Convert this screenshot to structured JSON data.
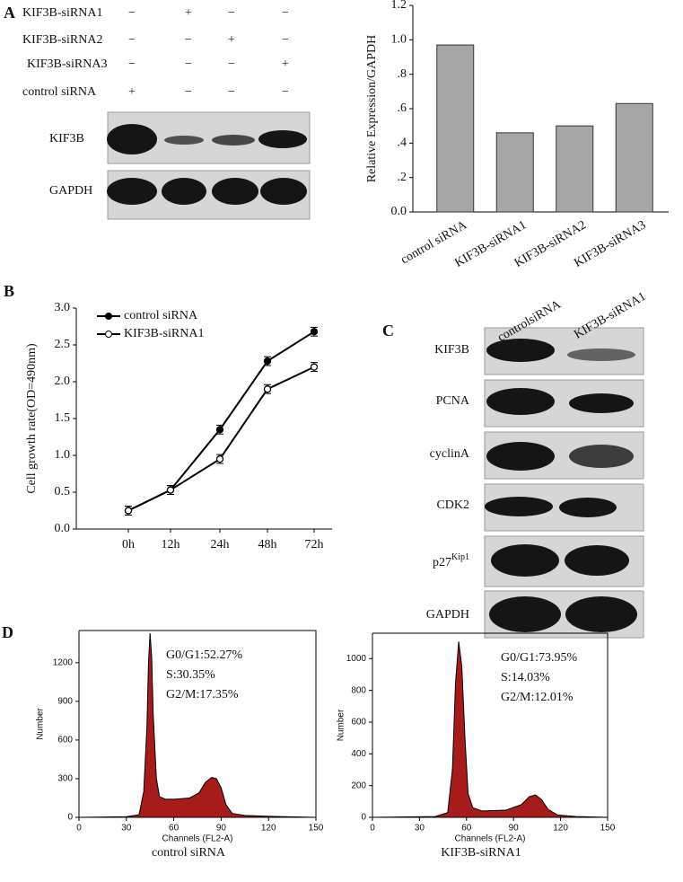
{
  "panel_labels": [
    "A",
    "B",
    "C",
    "D"
  ],
  "blot_a": {
    "conditions": [
      {
        "label": "KIF3B-siRNA1",
        "signs": [
          "−",
          "+",
          "−",
          "−"
        ]
      },
      {
        "label": "KIF3B-siRNA2",
        "signs": [
          "−",
          "−",
          "+",
          "−"
        ]
      },
      {
        "label": "KIF3B-siRNA3",
        "signs": [
          "−",
          "−",
          "−",
          "+"
        ]
      },
      {
        "label": "control siRNA",
        "signs": [
          "+",
          "−",
          "−",
          "−"
        ]
      }
    ],
    "bands": [
      "KIF3B",
      "GAPDH"
    ]
  },
  "blot_c": {
    "lanes": [
      "controlsiRNA",
      "KIF3B-siRNA1"
    ],
    "bands": [
      {
        "name": "KIF3B"
      },
      {
        "name": "PCNA"
      },
      {
        "name": "cyclinA"
      },
      {
        "name": "CDK2"
      },
      {
        "name": "p27",
        "superscript": "Kip1"
      },
      {
        "name": "GAPDH"
      }
    ]
  },
  "chart_data": [
    {
      "type": "bar",
      "y_label": "Relative Expression/GAPDH",
      "categories": [
        "control siRNA",
        "KIF3B-siRNA1",
        "KIF3B-siRNA2",
        "KIF3B-siRNA3"
      ],
      "values": [
        0.97,
        0.46,
        0.5,
        0.63
      ],
      "color": "#a6a6a6",
      "ylim": [
        0,
        1.2
      ],
      "yticks": [
        {
          "value": 0,
          "label": "0.0"
        },
        {
          "value": 0.2,
          "label": ".2"
        },
        {
          "value": 0.4,
          "label": ".4"
        },
        {
          "value": 0.6,
          "label": ".6"
        },
        {
          "value": 0.8,
          "label": ".8"
        },
        {
          "value": 1,
          "label": "1.0"
        },
        1.2
      ]
    },
    {
      "type": "line",
      "y_label": "Cell growth rate(OD=490nm)",
      "categories": [
        "0h",
        "12h",
        "24h",
        "48h",
        "72h"
      ],
      "ylim": [
        0,
        3
      ],
      "yticks": [
        {
          "value": 0,
          "label": "0.0"
        },
        0.5,
        {
          "value": 1,
          "label": "1.0"
        },
        1.5,
        {
          "value": 2,
          "label": "2.0"
        },
        2.5,
        {
          "value": 3,
          "label": "3.0"
        }
      ],
      "legend": "upper left",
      "series": [
        {
          "name": "control siRNA",
          "color": "#000000",
          "marker": "filled",
          "values": [
            0.25,
            0.53,
            1.35,
            2.28,
            2.68
          ],
          "errors": [
            0.06,
            0.06,
            0.06,
            0.06,
            0.06
          ]
        },
        {
          "name": "KIF3B-siRNA1",
          "color": "#000000",
          "marker": "open",
          "values": [
            0.25,
            0.53,
            0.95,
            1.9,
            2.2
          ],
          "errors": [
            0.06,
            0.06,
            0.06,
            0.06,
            0.06
          ]
        }
      ]
    },
    {
      "type": "area",
      "x_label": "Channels (FL2-A)",
      "y_label": "Number",
      "caption": "control siRNA",
      "annotations": [
        "G0/G1:52.27%",
        "S:30.35%",
        "G2/M:17.35%"
      ],
      "x": [
        0,
        30,
        38,
        41,
        43,
        44,
        45,
        46,
        47,
        49,
        51,
        55,
        60,
        70,
        76,
        80,
        84,
        87,
        90,
        93,
        97,
        105,
        120,
        150
      ],
      "values": [
        0,
        5,
        20,
        200,
        700,
        1200,
        1430,
        1250,
        800,
        300,
        160,
        140,
        140,
        150,
        190,
        270,
        310,
        300,
        230,
        100,
        30,
        15,
        8,
        0
      ],
      "color": "#a81b1b",
      "xlim": [
        0,
        150
      ],
      "xticks": [
        0,
        30,
        60,
        90,
        120,
        150
      ],
      "ylim": [
        0,
        1450
      ],
      "yticks": [
        0,
        300,
        600,
        900,
        1200
      ]
    },
    {
      "type": "area",
      "x_label": "Channels (FL2-A)",
      "y_label": "Number",
      "caption": "KIF3B-siRNA1",
      "annotations": [
        "G0/G1:73.95%",
        "S:14.03%",
        "G2/M:12.01%"
      ],
      "x": [
        0,
        40,
        48,
        51,
        53,
        55,
        57,
        59,
        61,
        64,
        70,
        85,
        95,
        100,
        104,
        108,
        112,
        118,
        130,
        150
      ],
      "values": [
        0,
        5,
        30,
        300,
        850,
        1107,
        950,
        500,
        150,
        60,
        40,
        45,
        80,
        130,
        141,
        110,
        50,
        15,
        5,
        0
      ],
      "color": "#a81b1b",
      "xlim": [
        0,
        150
      ],
      "xticks": [
        0,
        30,
        60,
        90,
        120,
        150
      ],
      "ylim": [
        0,
        1160
      ],
      "yticks": [
        0,
        200,
        400,
        600,
        800,
        1000
      ]
    }
  ]
}
